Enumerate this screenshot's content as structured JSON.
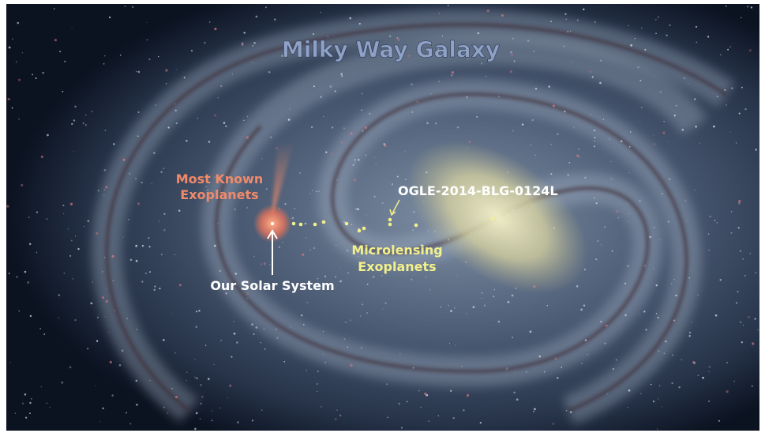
{
  "title": "Milky Way Galaxy",
  "labels": {
    "most_known": [
      "Most Known",
      "Exoplanets"
    ],
    "target": "OGLE-2014-BLG-0124L",
    "microlensing": [
      "Microlensing",
      "Exoplanets"
    ],
    "solar_system": "Our Solar System"
  }
}
